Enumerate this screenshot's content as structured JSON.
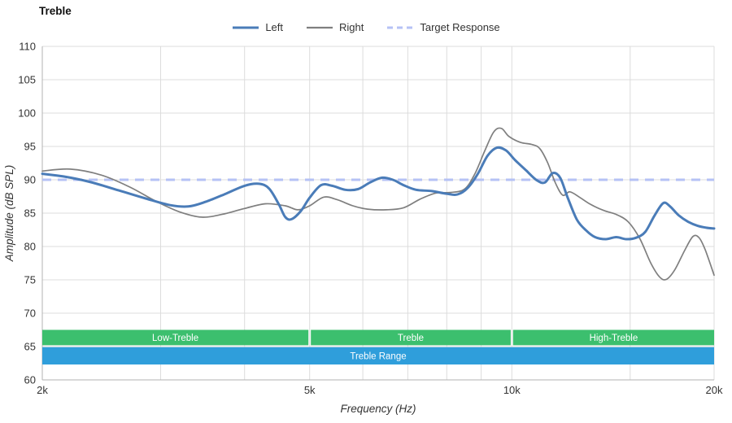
{
  "chart_data": {
    "type": "line",
    "title": "Treble",
    "xlabel": "Frequency (Hz)",
    "ylabel": "Amplitude (dB SPL)",
    "x_scale": "log",
    "xlim": [
      2000,
      20000
    ],
    "ylim": [
      60,
      110
    ],
    "y_ticks": [
      60,
      65,
      70,
      75,
      80,
      85,
      90,
      95,
      100,
      105,
      110
    ],
    "x_ticks": [
      {
        "value": 2000,
        "label": "2k"
      },
      {
        "value": 5000,
        "label": "5k"
      },
      {
        "value": 10000,
        "label": "10k"
      },
      {
        "value": 20000,
        "label": "20k"
      }
    ],
    "minor_x_gridlines": [
      3000,
      4000,
      6000,
      7000,
      8000,
      9000,
      15000
    ],
    "grid": true,
    "legend_position": "top-center",
    "target": {
      "name": "Target Response",
      "value": 90,
      "color": "#b5c2f5",
      "width": 3,
      "dash": "11 8"
    },
    "series": [
      {
        "name": "Left",
        "color": "#4a7cb8",
        "width": 3,
        "points": [
          [
            2000,
            90.9
          ],
          [
            2150,
            90.5
          ],
          [
            2350,
            89.7
          ],
          [
            2600,
            88.4
          ],
          [
            2850,
            87.2
          ],
          [
            3100,
            86.2
          ],
          [
            3300,
            86.0
          ],
          [
            3500,
            86.7
          ],
          [
            3750,
            87.9
          ],
          [
            4000,
            89.1
          ],
          [
            4200,
            89.4
          ],
          [
            4350,
            88.7
          ],
          [
            4500,
            86.3
          ],
          [
            4600,
            84.4
          ],
          [
            4700,
            84.1
          ],
          [
            4850,
            85.3
          ],
          [
            5000,
            87.3
          ],
          [
            5200,
            89.2
          ],
          [
            5400,
            89.1
          ],
          [
            5650,
            88.5
          ],
          [
            5900,
            88.6
          ],
          [
            6150,
            89.6
          ],
          [
            6400,
            90.3
          ],
          [
            6650,
            90.0
          ],
          [
            6900,
            89.2
          ],
          [
            7200,
            88.5
          ],
          [
            7600,
            88.3
          ],
          [
            8000,
            87.9
          ],
          [
            8300,
            87.8
          ],
          [
            8600,
            88.8
          ],
          [
            8900,
            90.9
          ],
          [
            9200,
            93.6
          ],
          [
            9500,
            94.8
          ],
          [
            9800,
            94.4
          ],
          [
            10100,
            93.0
          ],
          [
            10500,
            91.4
          ],
          [
            10900,
            89.9
          ],
          [
            11200,
            89.6
          ],
          [
            11500,
            91.0
          ],
          [
            11800,
            90.3
          ],
          [
            12100,
            87.4
          ],
          [
            12500,
            84.0
          ],
          [
            12900,
            82.4
          ],
          [
            13300,
            81.4
          ],
          [
            13800,
            81.1
          ],
          [
            14300,
            81.4
          ],
          [
            14800,
            81.1
          ],
          [
            15300,
            81.3
          ],
          [
            15800,
            82.2
          ],
          [
            16300,
            84.6
          ],
          [
            16800,
            86.5
          ],
          [
            17200,
            86.0
          ],
          [
            17700,
            84.7
          ],
          [
            18300,
            83.7
          ],
          [
            18900,
            83.1
          ],
          [
            19500,
            82.8
          ],
          [
            20000,
            82.7
          ]
        ]
      },
      {
        "name": "Right",
        "color": "#7f7f7f",
        "width": 1.7,
        "points": [
          [
            2000,
            91.3
          ],
          [
            2200,
            91.6
          ],
          [
            2450,
            90.7
          ],
          [
            2700,
            88.9
          ],
          [
            2950,
            86.8
          ],
          [
            3200,
            85.2
          ],
          [
            3450,
            84.4
          ],
          [
            3700,
            84.8
          ],
          [
            4000,
            85.7
          ],
          [
            4300,
            86.4
          ],
          [
            4600,
            86.1
          ],
          [
            4800,
            85.5
          ],
          [
            5000,
            86.1
          ],
          [
            5250,
            87.4
          ],
          [
            5500,
            87.0
          ],
          [
            5800,
            86.1
          ],
          [
            6100,
            85.6
          ],
          [
            6500,
            85.5
          ],
          [
            6900,
            85.8
          ],
          [
            7300,
            87.1
          ],
          [
            7700,
            88.0
          ],
          [
            8100,
            88.1
          ],
          [
            8500,
            88.6
          ],
          [
            8800,
            90.8
          ],
          [
            9100,
            94.2
          ],
          [
            9400,
            97.2
          ],
          [
            9650,
            97.7
          ],
          [
            9900,
            96.5
          ],
          [
            10300,
            95.6
          ],
          [
            10700,
            95.3
          ],
          [
            11000,
            94.7
          ],
          [
            11300,
            92.6
          ],
          [
            11600,
            89.6
          ],
          [
            11900,
            87.7
          ],
          [
            12200,
            88.2
          ],
          [
            12600,
            87.4
          ],
          [
            13100,
            86.3
          ],
          [
            13700,
            85.4
          ],
          [
            14300,
            84.8
          ],
          [
            14900,
            83.7
          ],
          [
            15500,
            81.2
          ],
          [
            16100,
            77.5
          ],
          [
            16600,
            75.4
          ],
          [
            17000,
            75.1
          ],
          [
            17500,
            76.6
          ],
          [
            18100,
            79.5
          ],
          [
            18600,
            81.5
          ],
          [
            19000,
            81.3
          ],
          [
            19400,
            79.5
          ],
          [
            20000,
            75.7
          ]
        ]
      }
    ],
    "bands": [
      {
        "label": "Low-Treble",
        "from": 2000,
        "to": 5000,
        "y0": 65.2,
        "y1": 67.5,
        "color": "#3cbf6e"
      },
      {
        "label": "Treble",
        "from": 5000,
        "to": 10000,
        "y0": 65.2,
        "y1": 67.5,
        "color": "#3cbf6e"
      },
      {
        "label": "High-Treble",
        "from": 10000,
        "to": 20000,
        "y0": 65.2,
        "y1": 67.5,
        "color": "#3cbf6e"
      },
      {
        "label": "Treble Range",
        "from": 2000,
        "to": 20000,
        "y0": 62.3,
        "y1": 64.9,
        "color": "#2f9edb"
      }
    ],
    "colors": {
      "grid": "#dcdcdc",
      "axis": "#b3b3b3",
      "tick_text": "#333333",
      "band_text": "#ffffff"
    }
  }
}
